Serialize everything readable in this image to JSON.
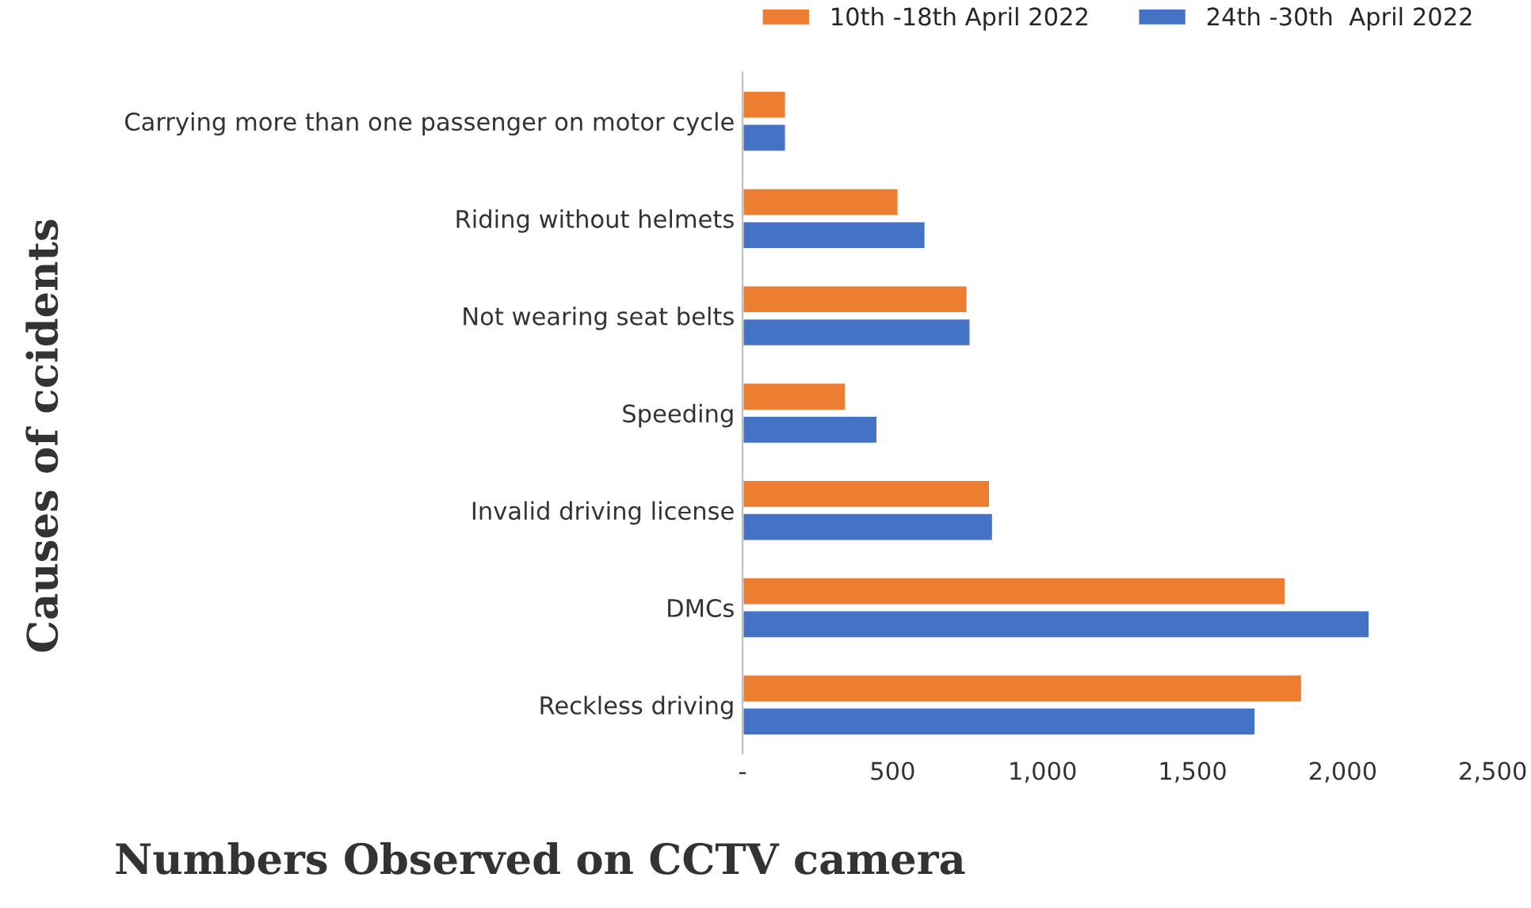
{
  "chart_data": {
    "type": "bar",
    "orientation": "horizontal",
    "xlabel": "Numbers Observed on CCTV camera",
    "ylabel": "Causes of ccidents",
    "categories": [
      "Carrying more than one passenger on motor cycle",
      "Riding without helmets",
      "Not wearing seat belts",
      "Speeding",
      "Invalid driving license",
      "DMCs",
      "Reckless driving"
    ],
    "series": [
      {
        "name": "10th -18th April 2022",
        "color": "#ed7d31",
        "values": [
          145,
          520,
          750,
          345,
          825,
          1810,
          1865
        ]
      },
      {
        "name": "24th -30th  April 2022",
        "color": "#4472c4",
        "values": [
          145,
          610,
          760,
          450,
          835,
          2090,
          1710
        ]
      }
    ],
    "xlim": [
      0,
      2500
    ],
    "xticks": [
      {
        "value": 0,
        "label": "-"
      },
      {
        "value": 500,
        "label": "500"
      },
      {
        "value": 1000,
        "label": "1,000"
      },
      {
        "value": 1500,
        "label": "1,500"
      },
      {
        "value": 2000,
        "label": "2,000"
      },
      {
        "value": 2500,
        "label": "2,500"
      }
    ],
    "grid": false,
    "legend": "top"
  }
}
